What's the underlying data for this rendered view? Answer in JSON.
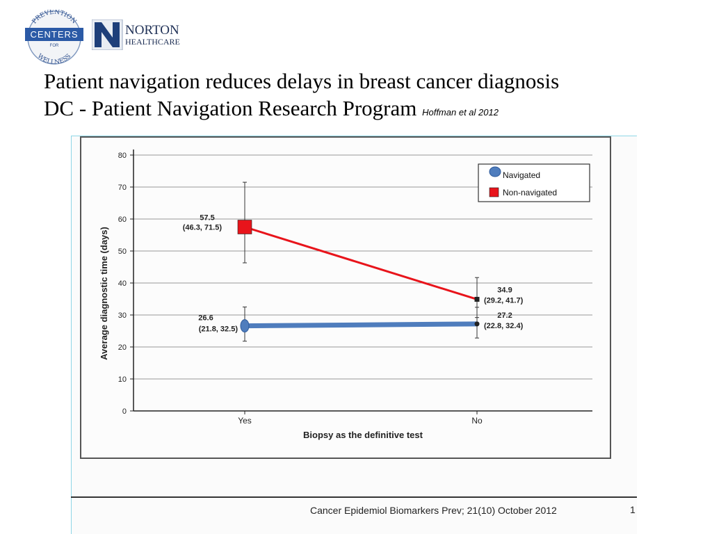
{
  "logos": {
    "prevention": {
      "top": "PREVENTION",
      "center": "CENTERS",
      "for": "FOR",
      "bottom": "WELLNESS"
    },
    "norton": {
      "line1": "NORTON",
      "line2": "HEALTHCARE"
    }
  },
  "title": {
    "line1": "Patient navigation reduces delays in breast cancer diagnosis",
    "line2": "DC - Patient Navigation Research Program",
    "citation": "Hoffman et al 2012"
  },
  "footer": {
    "journal": "Cancer Epidemiol Biomarkers Prev; 21(10) October 2012",
    "page": "1"
  },
  "colors": {
    "navigated": "#4f7dbd",
    "non_navigated": "#e8141b"
  },
  "chart_data": {
    "type": "line",
    "categories": [
      "Yes",
      "No"
    ],
    "xlabel": "Biopsy as the definitive test",
    "ylabel": "Average diagnostic time (days)",
    "ylim": [
      0,
      80
    ],
    "yticks": [
      0,
      10,
      20,
      30,
      40,
      50,
      60,
      70,
      80
    ],
    "grid": true,
    "legend_position": "top-right",
    "series": [
      {
        "name": "Navigated",
        "values": [
          26.6,
          27.2
        ],
        "ci_low": [
          21.8,
          22.8
        ],
        "ci_high": [
          32.5,
          32.4
        ],
        "labels": [
          "26.6",
          "27.2"
        ],
        "ci_labels": [
          "(21.8, 32.5)",
          "(22.8, 32.4)"
        ]
      },
      {
        "name": "Non-navigated",
        "values": [
          57.5,
          34.9
        ],
        "ci_low": [
          46.3,
          29.2
        ],
        "ci_high": [
          71.5,
          41.7
        ],
        "labels": [
          "57.5",
          "34.9"
        ],
        "ci_labels": [
          "(46.3, 71.5)",
          "(29.2, 41.7)"
        ]
      }
    ]
  }
}
